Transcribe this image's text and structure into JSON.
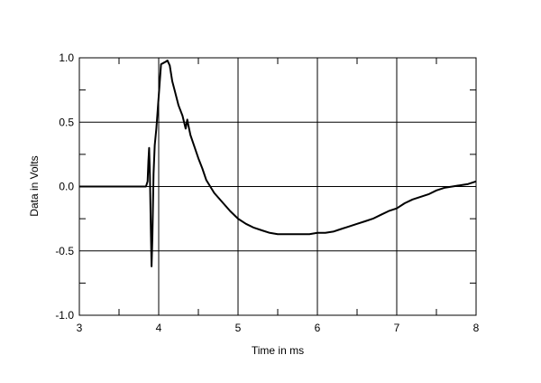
{
  "chart_data": {
    "type": "line",
    "title": "",
    "xlabel": "Time in ms",
    "ylabel": "Data in Volts",
    "xlim": [
      3,
      8
    ],
    "ylim": [
      -1.0,
      1.0
    ],
    "x_ticks": [
      3,
      4,
      5,
      6,
      7,
      8
    ],
    "y_ticks": [
      1.0,
      0.5,
      0.0,
      -0.5,
      -1.0
    ],
    "x_tick_labels": [
      "3",
      "4",
      "5",
      "6",
      "7",
      "8"
    ],
    "y_tick_labels": [
      "1.0",
      "0.5",
      "0.0",
      "-0.5",
      "-1.0"
    ],
    "grid": true,
    "legend": "none",
    "line_color": "#000000",
    "series": [
      {
        "x": [
          3.0,
          3.5,
          3.84,
          3.86,
          3.87,
          3.88,
          3.89,
          3.9,
          3.91,
          3.92,
          3.935,
          3.95,
          3.97,
          4.0,
          4.03,
          4.06,
          4.09,
          4.11,
          4.14,
          4.17,
          4.2,
          4.25,
          4.3,
          4.34,
          4.36,
          4.38,
          4.4,
          4.45,
          4.5,
          4.55,
          4.6,
          4.7,
          4.8,
          4.9,
          5.0,
          5.1,
          5.2,
          5.3,
          5.4,
          5.5,
          5.6,
          5.7,
          5.8,
          5.9,
          6.0,
          6.1,
          6.2,
          6.3,
          6.4,
          6.5,
          6.6,
          6.7,
          6.8,
          6.9,
          7.0,
          7.1,
          7.2,
          7.3,
          7.4,
          7.5,
          7.6,
          7.7,
          7.8,
          7.9,
          8.0
        ],
        "y": [
          0.0,
          0.0,
          0.0,
          0.04,
          0.2,
          0.3,
          0.08,
          -0.3,
          -0.62,
          -0.4,
          0.1,
          0.32,
          0.45,
          0.7,
          0.95,
          0.96,
          0.97,
          0.98,
          0.94,
          0.82,
          0.75,
          0.63,
          0.55,
          0.45,
          0.52,
          0.46,
          0.4,
          0.31,
          0.22,
          0.14,
          0.05,
          -0.05,
          -0.12,
          -0.19,
          -0.25,
          -0.29,
          -0.32,
          -0.34,
          -0.36,
          -0.37,
          -0.37,
          -0.37,
          -0.37,
          -0.37,
          -0.36,
          -0.36,
          -0.35,
          -0.33,
          -0.31,
          -0.29,
          -0.27,
          -0.25,
          -0.22,
          -0.19,
          -0.17,
          -0.13,
          -0.1,
          -0.08,
          -0.06,
          -0.03,
          -0.01,
          0.0,
          0.01,
          0.02,
          0.04
        ]
      }
    ]
  }
}
